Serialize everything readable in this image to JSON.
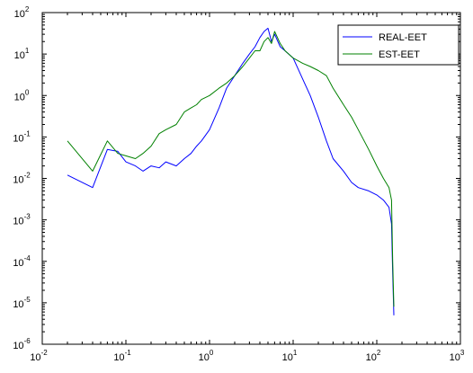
{
  "chart_data": {
    "type": "line",
    "title": "",
    "xlabel": "",
    "ylabel": "",
    "xscale": "log",
    "yscale": "log",
    "xlim": [
      0.01,
      1000
    ],
    "ylim": [
      1e-06,
      100
    ],
    "grid": false,
    "legend_position": "top-right",
    "x_ticks": [
      {
        "base": "10",
        "exp": "-2"
      },
      {
        "base": "10",
        "exp": "-1"
      },
      {
        "base": "10",
        "exp": "0"
      },
      {
        "base": "10",
        "exp": "1"
      },
      {
        "base": "10",
        "exp": "2"
      },
      {
        "base": "10",
        "exp": "3"
      }
    ],
    "y_ticks": [
      {
        "base": "10",
        "exp": "-6"
      },
      {
        "base": "10",
        "exp": "-5"
      },
      {
        "base": "10",
        "exp": "-4"
      },
      {
        "base": "10",
        "exp": "-3"
      },
      {
        "base": "10",
        "exp": "-2"
      },
      {
        "base": "10",
        "exp": "-1"
      },
      {
        "base": "10",
        "exp": "0"
      },
      {
        "base": "10",
        "exp": "1"
      },
      {
        "base": "10",
        "exp": "2"
      }
    ],
    "series": [
      {
        "name": "REAL-EET",
        "color": "#0000ff",
        "x": [
          0.02,
          0.04,
          0.06,
          0.08,
          0.1,
          0.13,
          0.16,
          0.2,
          0.25,
          0.3,
          0.4,
          0.5,
          0.6,
          0.7,
          0.8,
          1.0,
          1.3,
          1.6,
          2.0,
          2.5,
          3.0,
          3.5,
          4.0,
          4.5,
          5.0,
          5.5,
          6.0,
          7.0,
          8.0,
          10,
          13,
          16,
          20,
          25,
          30,
          40,
          50,
          60,
          80,
          100,
          120,
          140,
          150,
          155,
          160
        ],
        "y": [
          0.012,
          0.006,
          0.05,
          0.045,
          0.025,
          0.02,
          0.015,
          0.02,
          0.018,
          0.025,
          0.02,
          0.03,
          0.04,
          0.06,
          0.08,
          0.15,
          0.5,
          1.5,
          3.0,
          6.0,
          10.0,
          15.0,
          25.0,
          35.0,
          42.0,
          20.0,
          30.0,
          15.0,
          12.0,
          8.0,
          2.5,
          1.0,
          0.3,
          0.08,
          0.03,
          0.015,
          0.008,
          0.006,
          0.005,
          0.004,
          0.003,
          0.002,
          0.0008,
          5e-05,
          5e-06
        ]
      },
      {
        "name": "EST-EET",
        "color": "#008000",
        "x": [
          0.02,
          0.04,
          0.06,
          0.08,
          0.1,
          0.13,
          0.16,
          0.2,
          0.25,
          0.3,
          0.4,
          0.5,
          0.6,
          0.7,
          0.8,
          1.0,
          1.3,
          1.6,
          2.0,
          2.5,
          3.0,
          3.5,
          4.0,
          4.5,
          5.0,
          5.5,
          6.0,
          7.0,
          8.0,
          10,
          13,
          16,
          20,
          25,
          30,
          40,
          50,
          60,
          80,
          100,
          120,
          140,
          150,
          155,
          160
        ],
        "y": [
          0.08,
          0.015,
          0.08,
          0.04,
          0.035,
          0.03,
          0.04,
          0.06,
          0.12,
          0.15,
          0.2,
          0.4,
          0.5,
          0.6,
          0.8,
          1.0,
          1.5,
          2.0,
          3.0,
          5.0,
          8.0,
          12.0,
          12.0,
          20.0,
          25.0,
          18.0,
          35.0,
          18.0,
          12.0,
          8.0,
          6.0,
          5.0,
          4.0,
          3.0,
          1.5,
          0.6,
          0.3,
          0.15,
          0.05,
          0.02,
          0.01,
          0.006,
          0.003,
          0.0001,
          8e-06
        ]
      }
    ]
  }
}
